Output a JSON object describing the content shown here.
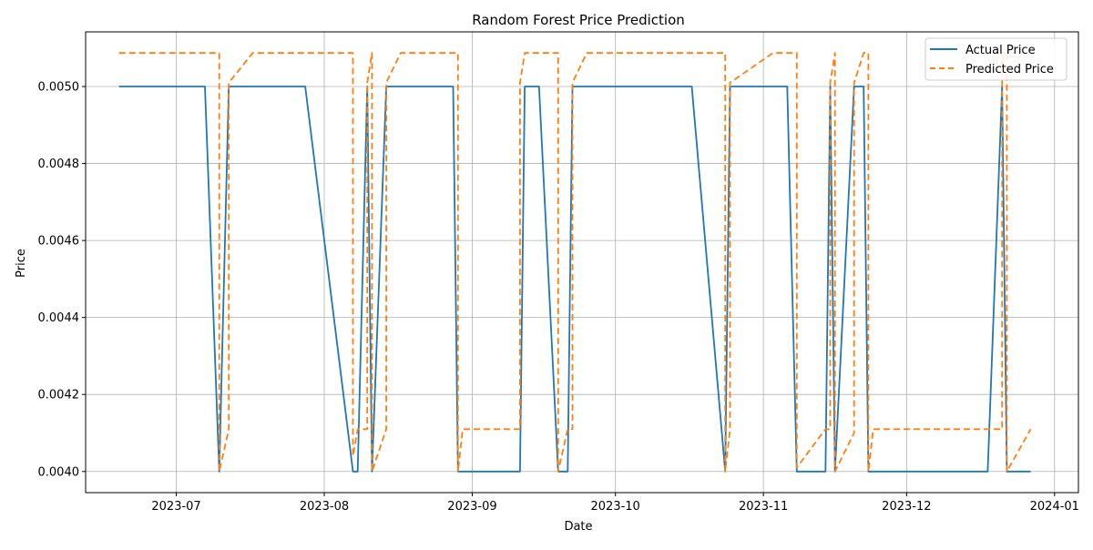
{
  "chart_data": {
    "type": "line",
    "title": "Random Forest Price Prediction",
    "xlabel": "Date",
    "ylabel": "Price",
    "x_axis": "date",
    "xlim": [
      "2023-06-12",
      "2024-01-06"
    ],
    "ylim": [
      0.003945,
      0.005142
    ],
    "x_ticks": [
      "2023-07-01",
      "2023-08-01",
      "2023-09-01",
      "2023-10-01",
      "2023-11-01",
      "2023-12-01",
      "2024-01-01"
    ],
    "x_tick_labels": [
      "2023-07",
      "2023-08",
      "2023-09",
      "2023-10",
      "2023-11",
      "2023-12",
      "2024-01"
    ],
    "y_ticks": [
      0.004,
      0.0042,
      0.0044,
      0.0046,
      0.0048,
      0.005
    ],
    "y_tick_labels": [
      "0.0040",
      "0.0042",
      "0.0044",
      "0.0046",
      "0.0048",
      "0.0050"
    ],
    "grid": true,
    "legend_position": "upper-right",
    "series": [
      {
        "name": "Actual Price",
        "color": "#1f77b4",
        "style": "solid",
        "points": [
          [
            "2023-06-19",
            0.005
          ],
          [
            "2023-07-07",
            0.005
          ],
          [
            "2023-07-10",
            0.004
          ],
          [
            "2023-07-12",
            0.005
          ],
          [
            "2023-07-28",
            0.005
          ],
          [
            "2023-08-07",
            0.004
          ],
          [
            "2023-08-08",
            0.004
          ],
          [
            "2023-08-10",
            0.005
          ],
          [
            "2023-08-11",
            0.004
          ],
          [
            "2023-08-14",
            0.005
          ],
          [
            "2023-08-28",
            0.005
          ],
          [
            "2023-08-29",
            0.004
          ],
          [
            "2023-09-11",
            0.004
          ],
          [
            "2023-09-12",
            0.005
          ],
          [
            "2023-09-15",
            0.005
          ],
          [
            "2023-09-19",
            0.004
          ],
          [
            "2023-09-21",
            0.004
          ],
          [
            "2023-09-22",
            0.005
          ],
          [
            "2023-10-17",
            0.005
          ],
          [
            "2023-10-24",
            0.004
          ],
          [
            "2023-10-25",
            0.005
          ],
          [
            "2023-11-06",
            0.005
          ],
          [
            "2023-11-08",
            0.004
          ],
          [
            "2023-11-14",
            0.004
          ],
          [
            "2023-11-15",
            0.005
          ],
          [
            "2023-11-16",
            0.004
          ],
          [
            "2023-11-20",
            0.005
          ],
          [
            "2023-11-22",
            0.005
          ],
          [
            "2023-11-23",
            0.004
          ],
          [
            "2023-12-18",
            0.004
          ],
          [
            "2023-12-21",
            0.005
          ],
          [
            "2023-12-22",
            0.004
          ],
          [
            "2023-12-27",
            0.004
          ]
        ]
      },
      {
        "name": "Predicted Price",
        "color": "#ff7f0e",
        "style": "dashed",
        "points": [
          [
            "2023-06-19",
            0.005087
          ],
          [
            "2023-07-10",
            0.005087
          ],
          [
            "2023-07-10",
            0.004
          ],
          [
            "2023-07-12",
            0.00411
          ],
          [
            "2023-07-12",
            0.00501
          ],
          [
            "2023-07-17",
            0.005087
          ],
          [
            "2023-08-07",
            0.005087
          ],
          [
            "2023-08-07",
            0.00404
          ],
          [
            "2023-08-08",
            0.00411
          ],
          [
            "2023-08-10",
            0.00411
          ],
          [
            "2023-08-10",
            0.00501
          ],
          [
            "2023-08-11",
            0.005087
          ],
          [
            "2023-08-11",
            0.004
          ],
          [
            "2023-08-14",
            0.00411
          ],
          [
            "2023-08-14",
            0.00501
          ],
          [
            "2023-08-17",
            0.005087
          ],
          [
            "2023-08-29",
            0.005087
          ],
          [
            "2023-08-29",
            0.004
          ],
          [
            "2023-08-30",
            0.00411
          ],
          [
            "2023-09-11",
            0.00411
          ],
          [
            "2023-09-11",
            0.00501
          ],
          [
            "2023-09-12",
            0.005087
          ],
          [
            "2023-09-19",
            0.005087
          ],
          [
            "2023-09-19",
            0.004
          ],
          [
            "2023-09-21",
            0.00411
          ],
          [
            "2023-09-22",
            0.00411
          ],
          [
            "2023-09-22",
            0.00501
          ],
          [
            "2023-09-25",
            0.005087
          ],
          [
            "2023-10-24",
            0.005087
          ],
          [
            "2023-10-24",
            0.004
          ],
          [
            "2023-10-25",
            0.00411
          ],
          [
            "2023-10-25",
            0.00501
          ],
          [
            "2023-11-03",
            0.005087
          ],
          [
            "2023-11-08",
            0.005087
          ],
          [
            "2023-11-08",
            0.00401
          ],
          [
            "2023-11-14",
            0.00411
          ],
          [
            "2023-11-15",
            0.00411
          ],
          [
            "2023-11-15",
            0.00501
          ],
          [
            "2023-11-16",
            0.005087
          ],
          [
            "2023-11-16",
            0.004
          ],
          [
            "2023-11-20",
            0.0041
          ],
          [
            "2023-11-20",
            0.00501
          ],
          [
            "2023-11-22",
            0.005087
          ],
          [
            "2023-11-23",
            0.005087
          ],
          [
            "2023-11-23",
            0.004
          ],
          [
            "2023-11-24",
            0.00411
          ],
          [
            "2023-12-21",
            0.00411
          ],
          [
            "2023-12-21",
            0.005087
          ],
          [
            "2023-12-22",
            0.005087
          ],
          [
            "2023-12-22",
            0.004
          ],
          [
            "2023-12-27",
            0.00411
          ]
        ]
      }
    ]
  }
}
